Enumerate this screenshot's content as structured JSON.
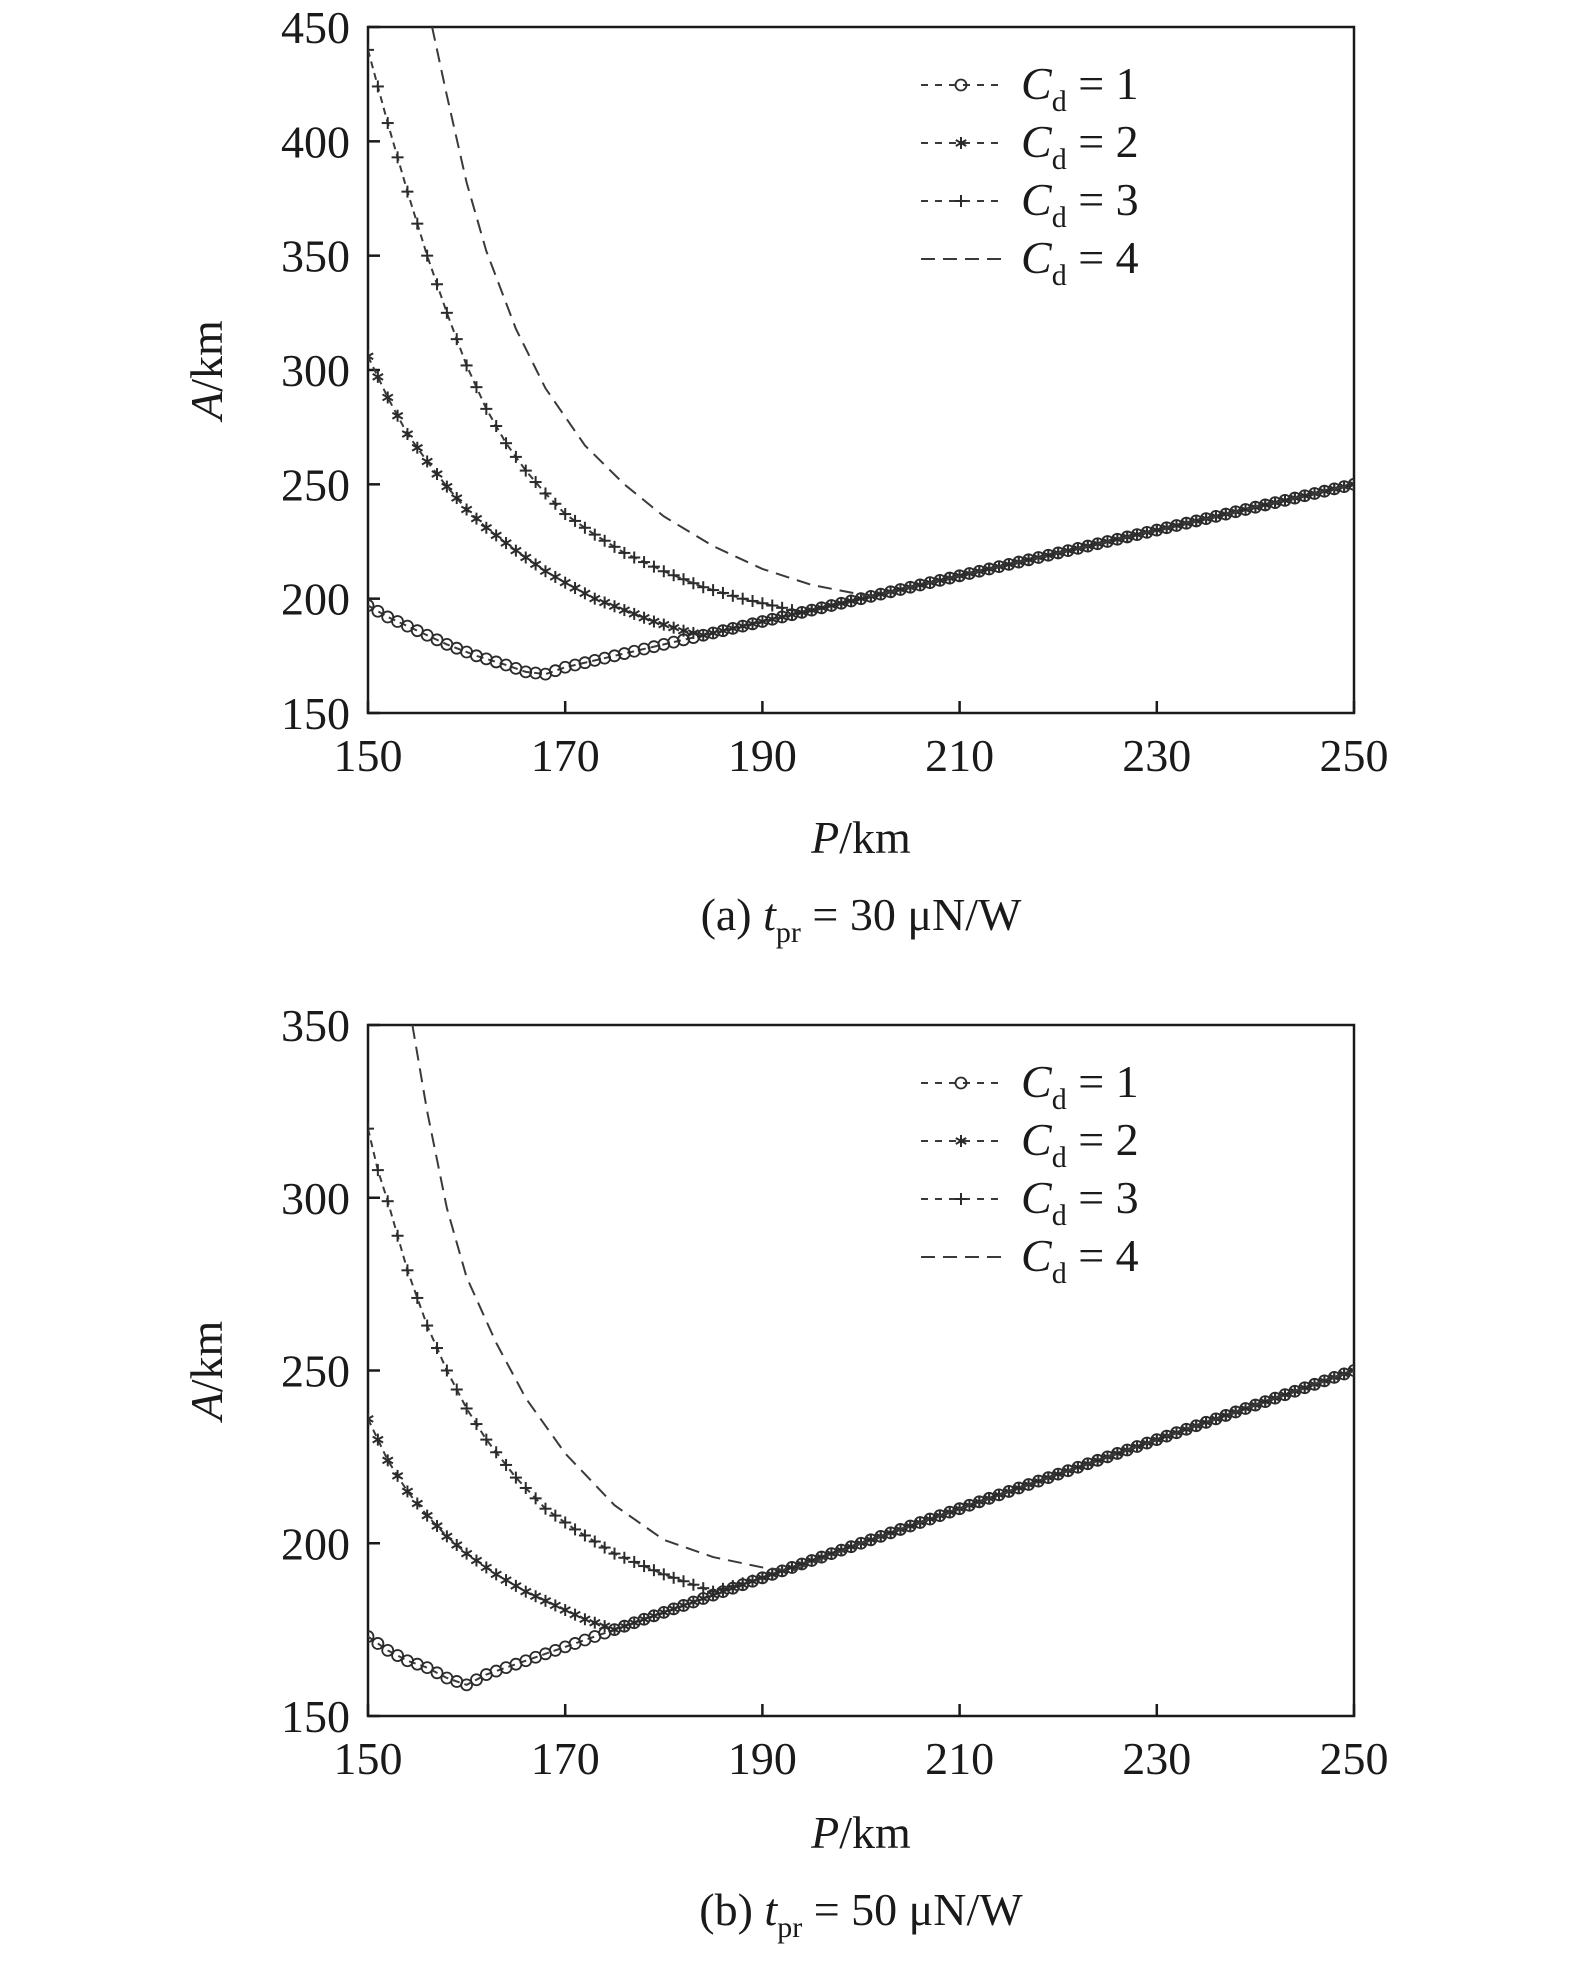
{
  "chart_data": [
    {
      "type": "line",
      "caption": {
        "prefix": "(a) ",
        "var": "t",
        "sub": "pr",
        "suffix": " = 30 μN/W"
      },
      "xlabel": {
        "var": "P",
        "unit": "/km"
      },
      "ylabel": {
        "var": "A",
        "unit": "/km"
      },
      "xlim": [
        150,
        250
      ],
      "ylim": [
        150,
        450
      ],
      "xticks": [
        "150",
        "170",
        "190",
        "210",
        "230",
        "250"
      ],
      "yticks": [
        "150",
        "200",
        "250",
        "300",
        "350",
        "400",
        "450"
      ],
      "grid": false,
      "legend_position": "top-right",
      "series": [
        {
          "name": "C",
          "sub": "d",
          "eq": " = 1",
          "marker": "circle",
          "line": "dashed",
          "x": [
            150,
            152,
            155,
            158,
            161,
            164,
            166,
            168,
            170,
            175,
            180,
            185,
            190,
            200,
            210,
            220,
            230,
            240,
            250
          ],
          "y": [
            197,
            192,
            186,
            180,
            175,
            171,
            168,
            167,
            170,
            175,
            180,
            185,
            190,
            200,
            210,
            220,
            230,
            240,
            250
          ]
        },
        {
          "name": "C",
          "sub": "d",
          "eq": " = 2",
          "marker": "asterisk",
          "line": "dashed",
          "x": [
            150,
            152,
            154,
            156,
            158,
            160,
            162,
            165,
            168,
            170,
            173,
            176,
            179,
            182,
            184,
            190,
            200,
            210,
            220,
            230,
            240,
            250
          ],
          "y": [
            306,
            288,
            272,
            260,
            249,
            239,
            231,
            221,
            212,
            207,
            200,
            195,
            190,
            186,
            184,
            190,
            200,
            210,
            220,
            230,
            240,
            250
          ]
        },
        {
          "name": "C",
          "sub": "d",
          "eq": " = 3",
          "marker": "plus",
          "line": "dashed",
          "x": [
            150,
            152,
            154,
            156,
            158,
            160,
            162,
            164,
            166,
            168,
            170,
            173,
            176,
            180,
            184,
            188,
            192,
            194,
            200,
            210,
            220,
            230,
            240,
            250
          ],
          "y": [
            440,
            408,
            378,
            350,
            325,
            302,
            283,
            268,
            256,
            246,
            237,
            228,
            220,
            212,
            205,
            200,
            196,
            194,
            200,
            210,
            220,
            230,
            240,
            250
          ]
        },
        {
          "name": "C",
          "sub": "d",
          "eq": " = 4",
          "marker": "none",
          "line": "dashed",
          "x": [
            156.5,
            158,
            160,
            162,
            165,
            168,
            172,
            176,
            180,
            185,
            190,
            195,
            201,
            210,
            220,
            230,
            240,
            250
          ],
          "y": [
            450,
            420,
            382,
            352,
            318,
            292,
            267,
            250,
            236,
            223,
            213,
            206,
            201,
            210,
            220,
            230,
            240,
            250
          ]
        }
      ]
    },
    {
      "type": "line",
      "caption": {
        "prefix": "(b) ",
        "var": "t",
        "sub": "pr",
        "suffix": " = 50 μN/W"
      },
      "xlabel": {
        "var": "P",
        "unit": "/km"
      },
      "ylabel": {
        "var": "A",
        "unit": "/km"
      },
      "xlim": [
        150,
        250
      ],
      "ylim": [
        150,
        350
      ],
      "xticks": [
        "150",
        "170",
        "190",
        "210",
        "230",
        "250"
      ],
      "yticks": [
        "150",
        "200",
        "250",
        "300",
        "350"
      ],
      "grid": false,
      "legend_position": "top-right",
      "series": [
        {
          "name": "C",
          "sub": "d",
          "eq": " = 1",
          "marker": "circle",
          "line": "dashed",
          "x": [
            150,
            152,
            154,
            156,
            158,
            160,
            162,
            165,
            170,
            175,
            180,
            190,
            200,
            210,
            220,
            230,
            240,
            250
          ],
          "y": [
            173,
            169,
            166,
            164,
            161,
            159,
            162,
            165,
            170,
            175,
            180,
            190,
            200,
            210,
            220,
            230,
            240,
            250
          ]
        },
        {
          "name": "C",
          "sub": "d",
          "eq": " = 2",
          "marker": "asterisk",
          "line": "dashed",
          "x": [
            150,
            152,
            154,
            156,
            158,
            160,
            163,
            166,
            169,
            172,
            175,
            180,
            190,
            200,
            210,
            220,
            230,
            240,
            250
          ],
          "y": [
            236,
            224,
            215,
            208,
            202,
            197,
            191,
            186,
            182,
            178,
            175,
            180,
            190,
            200,
            210,
            220,
            230,
            240,
            250
          ]
        },
        {
          "name": "C",
          "sub": "d",
          "eq": " = 3",
          "marker": "plus",
          "line": "dashed",
          "x": [
            150,
            151,
            152,
            154,
            156,
            158,
            160,
            162,
            165,
            168,
            171,
            175,
            180,
            185,
            190,
            200,
            210,
            220,
            230,
            240,
            250
          ],
          "y": [
            320,
            308,
            299,
            279,
            263,
            250,
            239,
            230,
            219,
            210,
            204,
            197,
            191,
            186,
            190,
            200,
            210,
            220,
            230,
            240,
            250
          ]
        },
        {
          "name": "C",
          "sub": "d",
          "eq": " = 4",
          "marker": "none",
          "line": "dashed",
          "x": [
            154.5,
            156,
            158,
            160,
            163,
            166,
            170,
            175,
            180,
            185,
            190,
            193,
            200,
            210,
            220,
            230,
            240,
            250
          ],
          "y": [
            350,
            325,
            297,
            277,
            258,
            242,
            226,
            211,
            201,
            196,
            193,
            192,
            200,
            210,
            220,
            230,
            240,
            250
          ]
        }
      ]
    }
  ]
}
